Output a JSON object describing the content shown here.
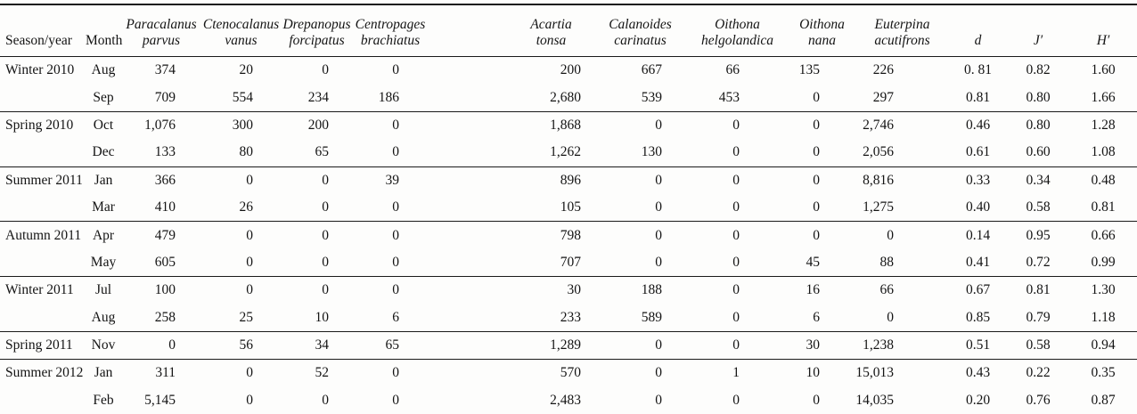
{
  "colors": {
    "background": "#fdfdfc",
    "text": "#141414",
    "rule": "#1a1a1a"
  },
  "table": {
    "columns": {
      "season": "Season/year",
      "month": "Month",
      "species": [
        {
          "genus": "Paracalanus",
          "species": "parvus"
        },
        {
          "genus": "Ctenocalanus",
          "species": "vanus"
        },
        {
          "genus": "Drepanopus",
          "species": "forcipatus"
        },
        {
          "genus": "Centropages",
          "species": "brachiatus"
        },
        {
          "genus": "Acartia",
          "species": "tonsa"
        },
        {
          "genus": "Calanoides",
          "species": "carinatus"
        },
        {
          "genus": "Oithona",
          "species": "helgolandica"
        },
        {
          "genus": "Oithona",
          "species": "nana"
        },
        {
          "genus": "Euterpina",
          "species": "acutifrons"
        }
      ],
      "indices": [
        "d",
        "J′",
        "H′"
      ]
    },
    "rows": [
      {
        "season": "Winter 2010",
        "month": "Aug",
        "counts": [
          "374",
          "20",
          "0",
          "0",
          "200",
          "667",
          "66",
          "135",
          "226"
        ],
        "d": "0. 81",
        "j": "0.82",
        "h": "1.60",
        "group_end": false
      },
      {
        "season": "",
        "month": "Sep",
        "counts": [
          "709",
          "554",
          "234",
          "186",
          "2,680",
          "539",
          "453",
          "0",
          "297"
        ],
        "d": "0.81",
        "j": "0.80",
        "h": "1.66",
        "group_end": true
      },
      {
        "season": "Spring 2010",
        "month": "Oct",
        "counts": [
          "1,076",
          "300",
          "200",
          "0",
          "1,868",
          "0",
          "0",
          "0",
          "2,746"
        ],
        "d": "0.46",
        "j": "0.80",
        "h": "1.28",
        "group_end": false
      },
      {
        "season": "",
        "month": "Dec",
        "counts": [
          "133",
          "80",
          "65",
          "0",
          "1,262",
          "130",
          "0",
          "0",
          "2,056"
        ],
        "d": "0.61",
        "j": "0.60",
        "h": "1.08",
        "group_end": true
      },
      {
        "season": "Summer 2011",
        "month": "Jan",
        "counts": [
          "366",
          "0",
          "0",
          "39",
          "896",
          "0",
          "0",
          "0",
          "8,816"
        ],
        "d": "0.33",
        "j": "0.34",
        "h": "0.48",
        "group_end": false
      },
      {
        "season": "",
        "month": "Mar",
        "counts": [
          "410",
          "26",
          "0",
          "0",
          "105",
          "0",
          "0",
          "0",
          "1,275"
        ],
        "d": "0.40",
        "j": "0.58",
        "h": "0.81",
        "group_end": true
      },
      {
        "season": "Autumn 2011",
        "month": "Apr",
        "counts": [
          "479",
          "0",
          "0",
          "0",
          "798",
          "0",
          "0",
          "0",
          "0"
        ],
        "d": "0.14",
        "j": "0.95",
        "h": "0.66",
        "group_end": false
      },
      {
        "season": "",
        "month": "May",
        "counts": [
          "605",
          "0",
          "0",
          "0",
          "707",
          "0",
          "0",
          "45",
          "88"
        ],
        "d": "0.41",
        "j": "0.72",
        "h": "0.99",
        "group_end": true
      },
      {
        "season": "Winter 2011",
        "month": "Jul",
        "counts": [
          "100",
          "0",
          "0",
          "0",
          "30",
          "188",
          "0",
          "16",
          "66"
        ],
        "d": "0.67",
        "j": "0.81",
        "h": "1.30",
        "group_end": false
      },
      {
        "season": "",
        "month": "Aug",
        "counts": [
          "258",
          "25",
          "10",
          "6",
          "233",
          "589",
          "0",
          "6",
          "0"
        ],
        "d": "0.85",
        "j": "0.79",
        "h": "1.18",
        "group_end": true
      },
      {
        "season": "Spring 2011",
        "month": "Nov",
        "counts": [
          "0",
          "56",
          "34",
          "65",
          "1,289",
          "0",
          "0",
          "30",
          "1,238"
        ],
        "d": "0.51",
        "j": "0.58",
        "h": "0.94",
        "group_end": true
      },
      {
        "season": "Summer 2012",
        "month": "Jan",
        "counts": [
          "311",
          "0",
          "52",
          "0",
          "570",
          "0",
          "1",
          "10",
          "15,013"
        ],
        "d": "0.43",
        "j": "0.22",
        "h": "0.35",
        "group_end": false
      },
      {
        "season": "",
        "month": "Feb",
        "counts": [
          "5,145",
          "0",
          "0",
          "0",
          "2,483",
          "0",
          "0",
          "0",
          "14,035"
        ],
        "d": "0.20",
        "j": "0.76",
        "h": "0.87",
        "group_end": false
      }
    ]
  }
}
